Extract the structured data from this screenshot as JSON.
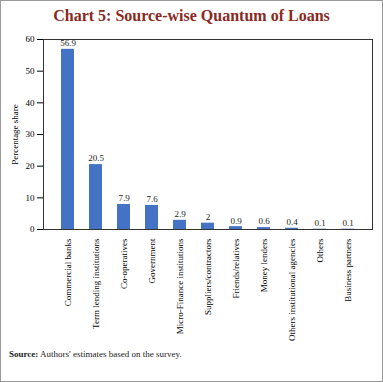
{
  "chart_data": {
    "type": "bar",
    "title": "Chart 5: Source-wise Quantum of Loans",
    "y_label": "Percentage share",
    "source_label": "Source:",
    "source_text": "Authors' estimates based on the survey.",
    "categories": [
      "Commercial banks",
      "Term lending institutions",
      "Co-operatives",
      "Government",
      "Micro-Finance institutions",
      "Suppliers/contractors",
      "Friends/relatives",
      "Money lenders",
      "Others institutional agencies",
      "Others",
      "Business partners"
    ],
    "values": [
      56.9,
      20.5,
      7.9,
      7.6,
      2.9,
      2.0,
      0.9,
      0.6,
      0.4,
      0.1,
      0.1
    ],
    "color": "#4472c4",
    "ylim": [
      0,
      60
    ],
    "yticks": [
      0,
      10,
      20,
      30,
      40,
      50,
      60
    ],
    "grid": false,
    "data_labels": true
  }
}
